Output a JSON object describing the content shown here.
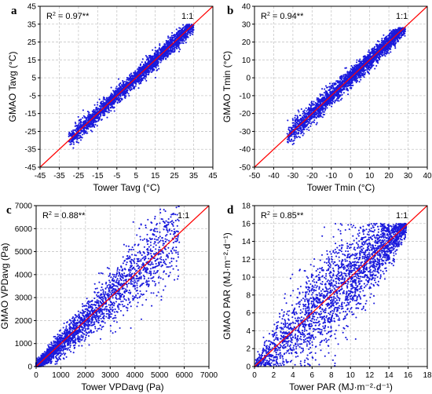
{
  "colors": {
    "points": "#1a1adc",
    "identity_line": "#ff0000",
    "grid": "#c8c8c8",
    "axis": "#000000"
  },
  "chart_data": [
    {
      "panel": "a",
      "type": "scatter",
      "xlabel": "Tower Tavg (°C)",
      "ylabel": "GMAO Tavg (°C)",
      "xlim": [
        -45,
        45
      ],
      "ylim": [
        -45,
        45
      ],
      "xticks": [
        -45,
        -35,
        -25,
        -15,
        -5,
        5,
        15,
        25,
        35,
        45
      ],
      "yticks": [
        -45,
        -35,
        -25,
        -15,
        -5,
        5,
        15,
        25,
        35,
        45
      ],
      "r2": "0.97**",
      "identity_label": "1:1",
      "grid": true,
      "points_summary": {
        "x_range": [
          -32,
          35
        ],
        "y_range": [
          -40,
          35
        ],
        "spread": "tight around 1:1"
      }
    },
    {
      "panel": "b",
      "type": "scatter",
      "xlabel": "Tower Tmin (°C)",
      "ylabel": "GMAO Tmin (°C)",
      "xlim": [
        -50,
        40
      ],
      "ylim": [
        -50,
        40
      ],
      "xticks": [
        -50,
        -40,
        -30,
        -20,
        -10,
        0,
        10,
        20,
        30,
        40
      ],
      "yticks": [
        -50,
        -40,
        -30,
        -20,
        -10,
        0,
        10,
        20,
        30,
        40
      ],
      "r2": "0.94**",
      "identity_label": "1:1",
      "grid": true,
      "points_summary": {
        "x_range": [
          -33,
          28
        ],
        "y_range": [
          -37,
          28
        ],
        "spread": "moderate around 1:1"
      }
    },
    {
      "panel": "c",
      "type": "scatter",
      "xlabel": "Tower VPDavg (Pa)",
      "ylabel": "GMAO VPDavg (Pa)",
      "xlim": [
        0,
        7000
      ],
      "ylim": [
        0,
        7000
      ],
      "xticks": [
        0,
        1000,
        2000,
        3000,
        4000,
        5000,
        6000,
        7000
      ],
      "yticks": [
        0,
        1000,
        2000,
        3000,
        4000,
        5000,
        6000,
        7000
      ],
      "r2": "0.88**",
      "identity_label": "1:1",
      "grid": true,
      "points_summary": {
        "x_range": [
          0,
          6000
        ],
        "y_range": [
          0,
          6000
        ],
        "spread": "dense near origin, fanning out"
      }
    },
    {
      "panel": "d",
      "type": "scatter",
      "xlabel": "Tower PAR (MJ·m⁻²·d⁻¹)",
      "ylabel": "GMAO PAR (MJ·m⁻²·d⁻¹)",
      "xlim": [
        0,
        18
      ],
      "ylim": [
        0,
        18
      ],
      "xticks": [
        0,
        2,
        4,
        6,
        8,
        10,
        12,
        14,
        16,
        18
      ],
      "yticks": [
        0,
        2,
        4,
        6,
        8,
        10,
        12,
        14,
        16,
        18
      ],
      "r2": "0.85**",
      "identity_label": "1:1",
      "grid": true,
      "points_summary": {
        "x_range": [
          0,
          16
        ],
        "y_range": [
          0,
          16
        ],
        "spread": "wide, lens-shaped around 1:1"
      }
    }
  ]
}
